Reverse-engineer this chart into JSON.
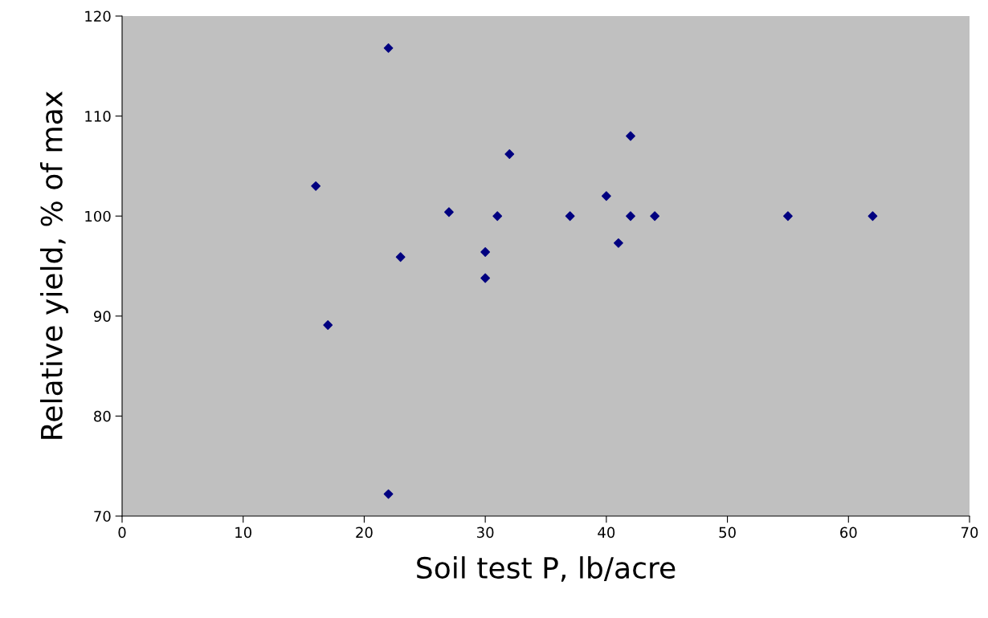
{
  "chart_data": {
    "type": "scatter",
    "xlabel": "Soil test P, lb/acre",
    "ylabel": "Relative yield, % of max",
    "x": [
      16,
      17,
      22,
      22,
      23,
      27,
      30,
      30,
      31,
      32,
      37,
      40,
      41,
      42,
      42,
      44,
      55,
      62
    ],
    "series": [
      {
        "color": "#000080",
        "values": [
          103.0,
          89.1,
          116.8,
          72.2,
          95.9,
          100.4,
          96.4,
          93.8,
          100,
          106.2,
          100,
          102,
          97.3,
          108,
          100,
          100,
          100,
          100
        ]
      }
    ],
    "xlim": [
      0,
      70
    ],
    "xticks": [
      0,
      10,
      20,
      30,
      40,
      50,
      60,
      70
    ],
    "ylim": [
      70,
      120
    ],
    "yticks": [
      70,
      80,
      90,
      100,
      110,
      120
    ],
    "marker": "diamond",
    "grid": false,
    "legend": false
  }
}
